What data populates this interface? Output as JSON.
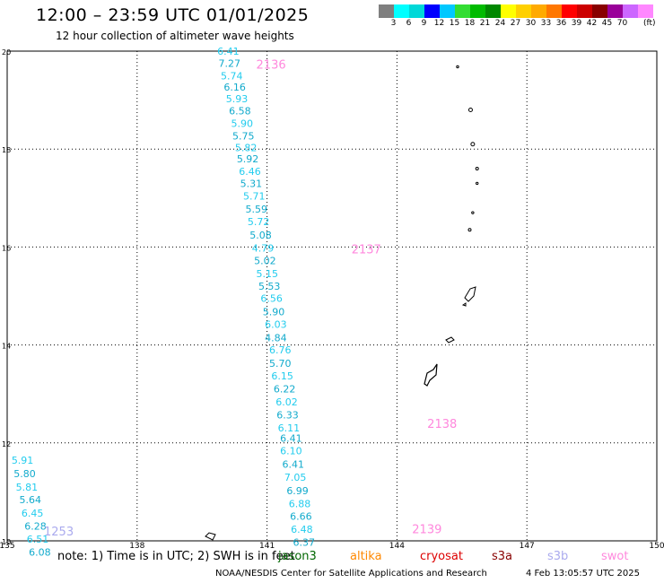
{
  "title": "12:00 – 23:59 UTC 01/01/2025",
  "subtitle": "12 hour collection of altimeter wave heights",
  "colorbar": {
    "colors": [
      "#7f7f7f",
      "#00ffff",
      "#00d8d8",
      "#0000ff",
      "#00c8ff",
      "#33dd33",
      "#00bb00",
      "#008800",
      "#ffff00",
      "#ffd000",
      "#ffaa00",
      "#ff7700",
      "#ff0000",
      "#cc0000",
      "#880000",
      "#990099",
      "#cc66ff",
      "#ff88ff",
      "#000000"
    ],
    "labels": [
      "",
      "3",
      "6",
      "9",
      "12",
      "15",
      "18",
      "21",
      "24",
      "27",
      "30",
      "33",
      "36",
      "39",
      "42",
      "45",
      "70"
    ],
    "unit": "(ft)"
  },
  "axes": {
    "lon_ticks": [
      "135",
      "138",
      "141",
      "144",
      "147",
      "150"
    ],
    "lat_ticks": [
      "20",
      "18",
      "16",
      "14",
      "12",
      "10"
    ]
  },
  "tracks": [
    {
      "id": "2136",
      "color": "#ff88dd",
      "label_lat": 19.73,
      "label_lon": 140.75
    },
    {
      "id": "2137",
      "color": "#ff88dd",
      "label_lat": 15.96,
      "label_lon": 142.95
    },
    {
      "id": "2138",
      "color": "#ff88dd",
      "label_lat": 12.4,
      "label_lon": 144.7
    },
    {
      "id": "2139",
      "color": "#ff88dd",
      "label_lat": 10.25,
      "label_lon": 144.35
    },
    {
      "id": "1253",
      "color": "#aaaaee",
      "label_lat": 10.2,
      "label_lon": 135.85
    }
  ],
  "readings": [
    {
      "v": "6.41",
      "lat": 20.0,
      "lon": 139.85
    },
    {
      "v": "7.27",
      "lat": 19.75,
      "lon": 139.88
    },
    {
      "v": "5.74",
      "lat": 19.5,
      "lon": 139.93
    },
    {
      "v": "6.16",
      "lat": 19.27,
      "lon": 140.0
    },
    {
      "v": "5.93",
      "lat": 19.03,
      "lon": 140.05
    },
    {
      "v": "6.58",
      "lat": 18.78,
      "lon": 140.12
    },
    {
      "v": "5.90",
      "lat": 18.53,
      "lon": 140.17
    },
    {
      "v": "5.75",
      "lat": 18.27,
      "lon": 140.2
    },
    {
      "v": "5.82",
      "lat": 18.03,
      "lon": 140.26
    },
    {
      "v": "5.92",
      "lat": 17.8,
      "lon": 140.3
    },
    {
      "v": "6.46",
      "lat": 17.55,
      "lon": 140.35
    },
    {
      "v": "5.31",
      "lat": 17.3,
      "lon": 140.38
    },
    {
      "v": "5.71",
      "lat": 17.04,
      "lon": 140.45
    },
    {
      "v": "5.59",
      "lat": 16.78,
      "lon": 140.5
    },
    {
      "v": "5.72",
      "lat": 16.52,
      "lon": 140.55
    },
    {
      "v": "5.08",
      "lat": 16.25,
      "lon": 140.6
    },
    {
      "v": "4.79",
      "lat": 15.98,
      "lon": 140.65
    },
    {
      "v": "5.02",
      "lat": 15.72,
      "lon": 140.7
    },
    {
      "v": "5.15",
      "lat": 15.46,
      "lon": 140.75
    },
    {
      "v": "5.53",
      "lat": 15.2,
      "lon": 140.8
    },
    {
      "v": "6.56",
      "lat": 14.95,
      "lon": 140.85
    },
    {
      "v": "5.90",
      "lat": 14.68,
      "lon": 140.9
    },
    {
      "v": "6.03",
      "lat": 14.42,
      "lon": 140.95
    },
    {
      "v": "4.84",
      "lat": 14.15,
      "lon": 140.95
    },
    {
      "v": "6.76",
      "lat": 13.9,
      "lon": 141.05
    },
    {
      "v": "5.70",
      "lat": 13.63,
      "lon": 141.05
    },
    {
      "v": "6.15",
      "lat": 13.37,
      "lon": 141.1
    },
    {
      "v": "6.22",
      "lat": 13.1,
      "lon": 141.15
    },
    {
      "v": "6.02",
      "lat": 12.84,
      "lon": 141.2
    },
    {
      "v": "6.33",
      "lat": 12.57,
      "lon": 141.22
    },
    {
      "v": "6.11",
      "lat": 12.31,
      "lon": 141.25
    },
    {
      "v": "6.41",
      "lat": 12.1,
      "lon": 141.3
    },
    {
      "v": "6.10",
      "lat": 11.84,
      "lon": 141.3
    },
    {
      "v": "6.41",
      "lat": 11.57,
      "lon": 141.35
    },
    {
      "v": "7.05",
      "lat": 11.3,
      "lon": 141.4
    },
    {
      "v": "6.99",
      "lat": 11.03,
      "lon": 141.45
    },
    {
      "v": "6.88",
      "lat": 10.76,
      "lon": 141.5
    },
    {
      "v": "6.66",
      "lat": 10.5,
      "lon": 141.53
    },
    {
      "v": "6.48",
      "lat": 10.24,
      "lon": 141.55
    },
    {
      "v": "6.37",
      "lat": 9.97,
      "lon": 141.6
    },
    {
      "v": "5.91",
      "lat": 11.65,
      "lon": 135.1
    },
    {
      "v": "5.80",
      "lat": 11.37,
      "lon": 135.15
    },
    {
      "v": "5.81",
      "lat": 11.1,
      "lon": 135.2
    },
    {
      "v": "5.64",
      "lat": 10.84,
      "lon": 135.28
    },
    {
      "v": "6.45",
      "lat": 10.57,
      "lon": 135.33
    },
    {
      "v": "6.28",
      "lat": 10.3,
      "lon": 135.4
    },
    {
      "v": "6.51",
      "lat": 10.04,
      "lon": 135.45
    },
    {
      "v": "6.08",
      "lat": 9.77,
      "lon": 135.5
    }
  ],
  "note_text": "note: 1) Time is in UTC; 2) SWH is in feet",
  "satellites": [
    {
      "name": "jason3",
      "color": "#006600"
    },
    {
      "name": "altika",
      "color": "#ff8800"
    },
    {
      "name": "cryosat",
      "color": "#dd0000"
    },
    {
      "name": "s3a",
      "color": "#880000"
    },
    {
      "name": "s3b",
      "color": "#aaaaee"
    },
    {
      "name": "swot",
      "color": "#ff88dd"
    }
  ],
  "footer_source": "NOAA/NESDIS Center for Satellite Applications and Research",
  "footer_timestamp": "4 Feb 13:05:57 UTC 2025"
}
